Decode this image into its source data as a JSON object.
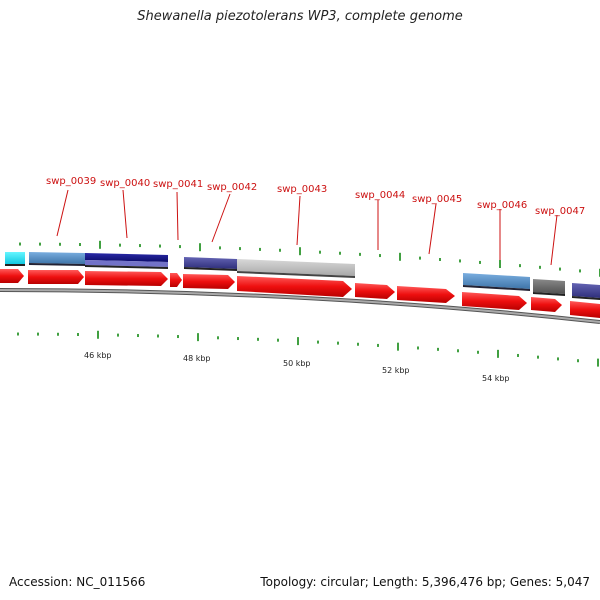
{
  "title": "Shewanella piezotolerans WP3, complete genome",
  "footer": {
    "accession": "Accession: NC_011566",
    "summary": "Topology: circular; Length: 5,396,476 bp; Genes: 5,047"
  },
  "colors": {
    "forward_gene": "#ee1111",
    "label": "#cc1111",
    "tick": "#118811",
    "backbone": "#888888"
  },
  "genes": [
    {
      "name": "swp_0039"
    },
    {
      "name": "swp_0040"
    },
    {
      "name": "swp_0041"
    },
    {
      "name": "swp_0042"
    },
    {
      "name": "swp_0043"
    },
    {
      "name": "swp_0044"
    },
    {
      "name": "swp_0045"
    },
    {
      "name": "swp_0046"
    },
    {
      "name": "swp_0047"
    }
  ],
  "scale_labels": [
    "46 kbp",
    "48 kbp",
    "50 kbp",
    "52 kbp",
    "54 kbp"
  ]
}
